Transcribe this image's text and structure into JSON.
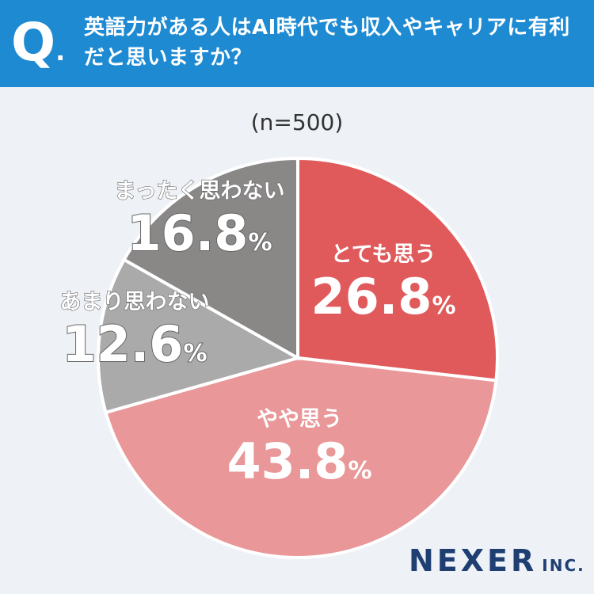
{
  "header": {
    "q_mark": "Q",
    "question": "英語力がある人はAI時代でも収入やキャリアに有利だと思いますか？"
  },
  "n_label": "(n=500)",
  "brand": {
    "name": "NEXER",
    "suffix": "INC."
  },
  "colors": {
    "header_bg": "#1e8ad2",
    "slice_1": "#e05a5c",
    "slice_2": "#e99798",
    "slice_3": "#aaaaaa",
    "slice_4": "#8a8787"
  },
  "chart_data": {
    "type": "pie",
    "slices": [
      {
        "label": "とても思う",
        "value": 26.8,
        "display": "26.8",
        "unit": "%"
      },
      {
        "label": "やや思う",
        "value": 43.8,
        "display": "43.8",
        "unit": "%"
      },
      {
        "label": "あまり思わない",
        "value": 12.6,
        "display": "12.6",
        "unit": "%"
      },
      {
        "label": "まったく思わない",
        "value": 16.8,
        "display": "16.8",
        "unit": "%"
      }
    ]
  }
}
